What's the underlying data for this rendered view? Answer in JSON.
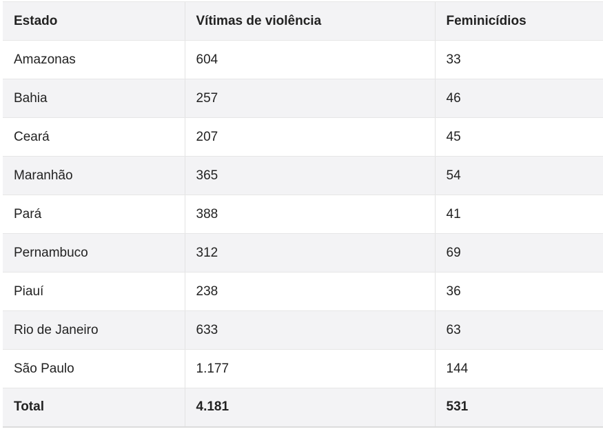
{
  "table": {
    "headers": [
      "Estado",
      "Vítimas de violência",
      "Feminicídios"
    ],
    "rows": [
      [
        "Amazonas",
        "604",
        "33"
      ],
      [
        "Bahia",
        "257",
        "46"
      ],
      [
        "Ceará",
        "207",
        "45"
      ],
      [
        "Maranhão",
        "365",
        "54"
      ],
      [
        "Pará",
        "388",
        "41"
      ],
      [
        "Pernambuco",
        "312",
        "69"
      ],
      [
        "Piauí",
        "238",
        "36"
      ],
      [
        "Rio de Janeiro",
        "633",
        "63"
      ],
      [
        "São Paulo",
        "1.177",
        "144"
      ]
    ],
    "total": [
      "Total",
      "4.181",
      "531"
    ]
  }
}
